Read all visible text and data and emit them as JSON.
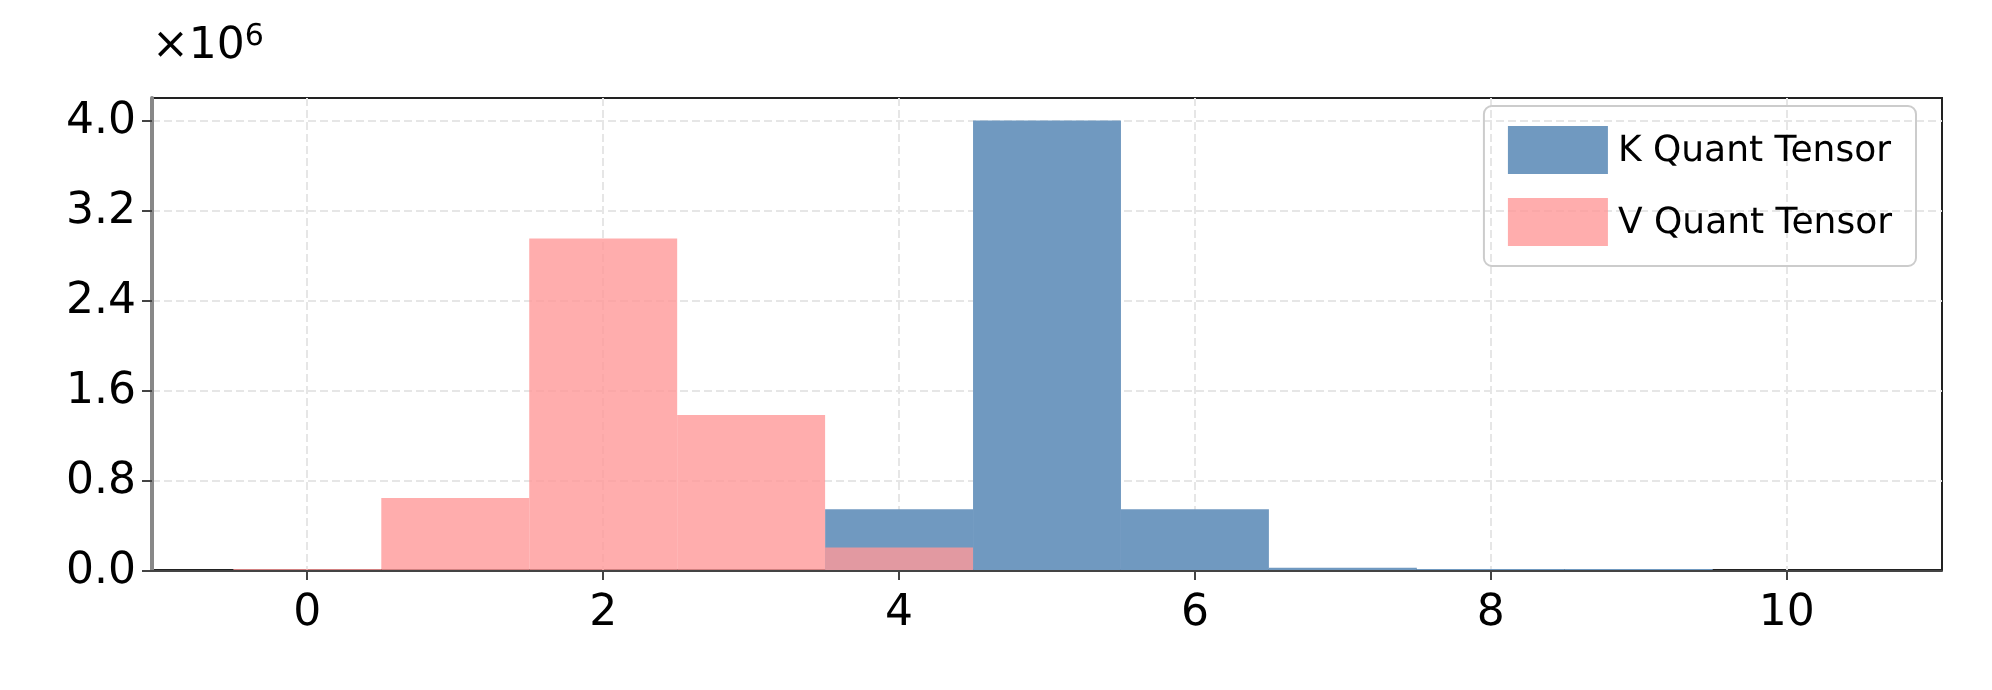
{
  "chart_data": {
    "type": "histogram",
    "bins": [
      -0.5,
      0.5,
      1.5,
      2.5,
      3.5,
      4.5,
      5.5,
      6.5,
      7.5,
      8.5,
      9.5,
      10.5
    ],
    "series": [
      {
        "name": "K Quant Tensor",
        "color": "#7099c0",
        "values": [
          0,
          0,
          null,
          null,
          0.54,
          4.0,
          0.54,
          0.02,
          0.01,
          0.01,
          0
        ]
      },
      {
        "name": "V Quant Tensor",
        "color": "#ff9999",
        "values": [
          0.01,
          0.64,
          2.95,
          1.38,
          0.2,
          0,
          0,
          0,
          0,
          0,
          0
        ]
      }
    ],
    "xlim": [
      -1.05,
      11.05
    ],
    "xticks": [
      0,
      2,
      4,
      6,
      8,
      10
    ],
    "ylim": [
      0,
      4.2
    ],
    "yticks": [
      {
        "value": 0,
        "label": "0.0"
      },
      {
        "value": 0.8,
        "label": "0.8"
      },
      1.6,
      2.4,
      3.2,
      {
        "value": 4,
        "label": "4.0"
      }
    ],
    "annotations": [
      "×10$^{6}$"
    ],
    "grid": true,
    "legend": "top right"
  }
}
